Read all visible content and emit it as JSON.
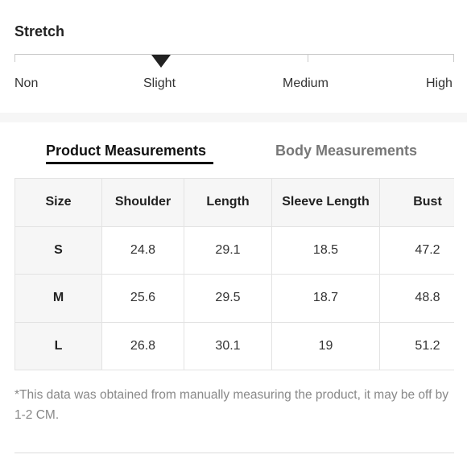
{
  "stretch": {
    "title": "Stretch",
    "levels": [
      "Non",
      "Slight",
      "Medium",
      "High"
    ],
    "selected": "Slight"
  },
  "tabs": [
    {
      "label": "Product Measurements",
      "active": true
    },
    {
      "label": "Body Measurements",
      "active": false
    }
  ],
  "table": {
    "headers": [
      "Size",
      "Shoulder",
      "Length",
      "Sleeve Length",
      "Bust"
    ],
    "rows": [
      [
        "S",
        "24.8",
        "29.1",
        "18.5",
        "47.2"
      ],
      [
        "M",
        "25.6",
        "29.5",
        "18.7",
        "48.8"
      ],
      [
        "L",
        "26.8",
        "30.1",
        "19",
        "51.2"
      ]
    ]
  },
  "note": "*This data was obtained from manually measuring the product, it may be off by 1-2 CM.",
  "colors": {
    "text": "#222222",
    "muted": "#888888",
    "header_bg": "#f6f6f6",
    "border": "#e3e3e3"
  }
}
